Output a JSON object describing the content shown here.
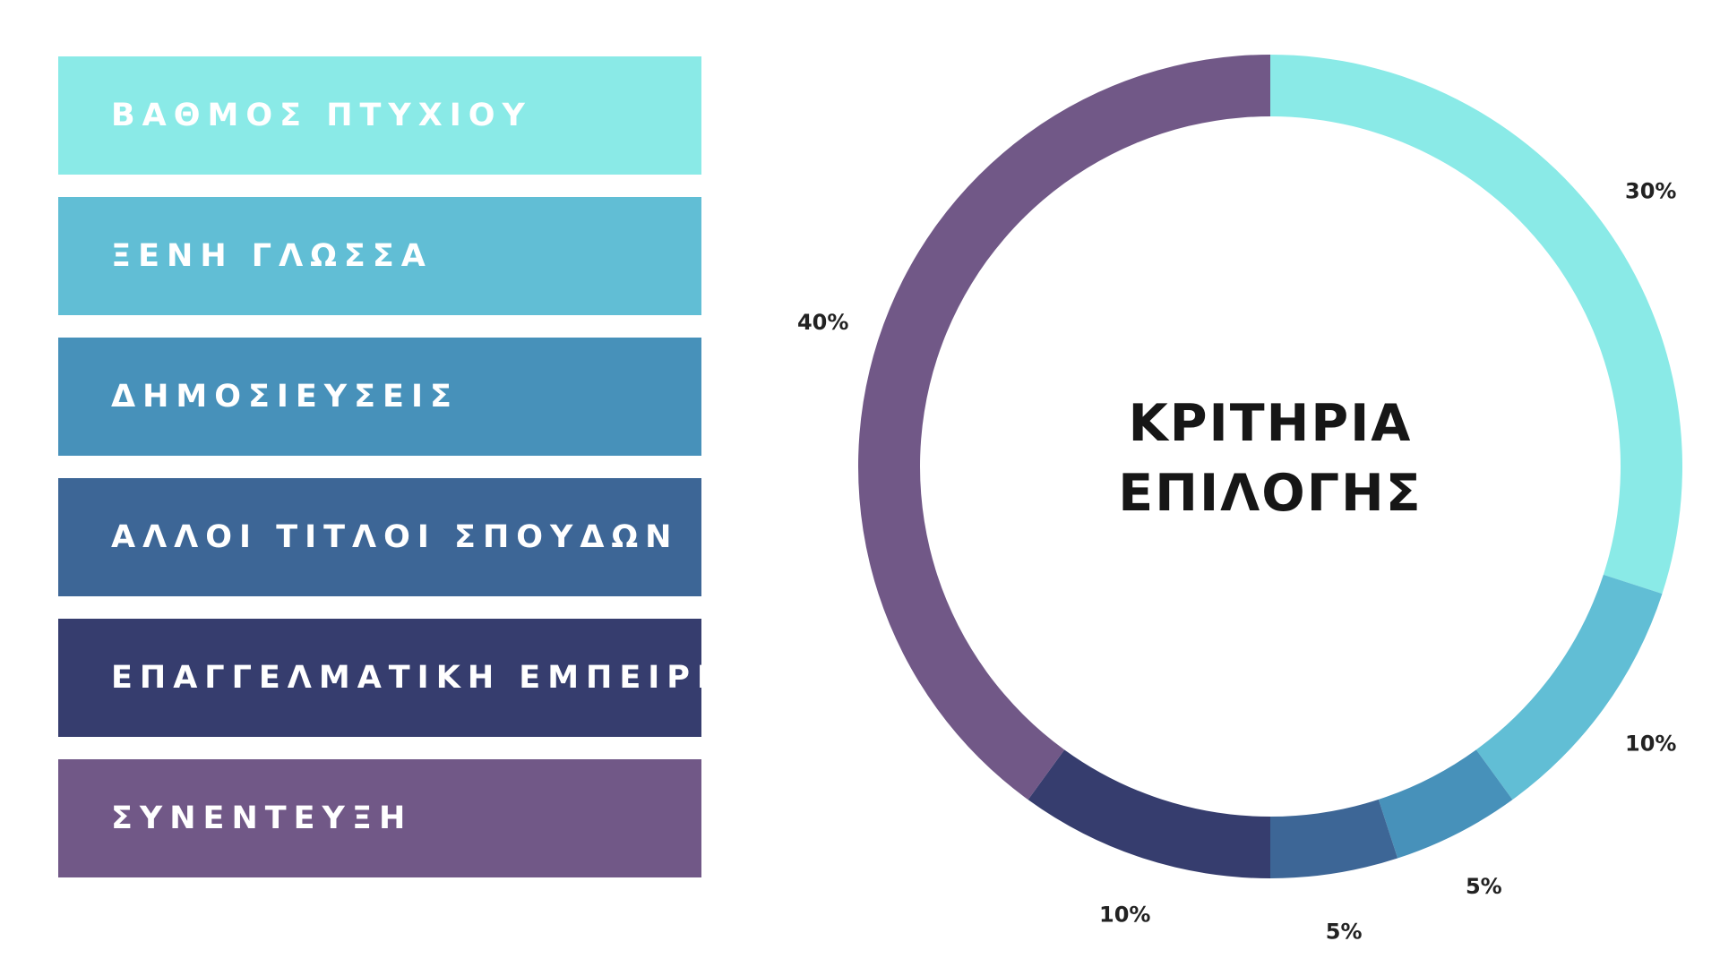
{
  "chart_data": {
    "type": "pie",
    "variant": "donut",
    "title_lines": [
      "ΚΡΙΤΗΡΙΑ",
      "ΕΠΙΛΟΓΗΣ"
    ],
    "categories": [
      "ΒΑΘΜΟΣ ΠΤΥΧΙΟΥ",
      "ΞΕΝΗ ΓΛΩΣΣΑ",
      "ΔΗΜΟΣΙΕΥΣΕΙΣ",
      "ΑΛΛΟΙ ΤΙΤΛΟΙ ΣΠΟΥΔΩΝ",
      "ΕΠΑΓΓΕΛΜΑΤΙΚΗ ΕΜΠΕΙΡΙΑ",
      "ΣΥΝΕΝΤΕΥΞΗ"
    ],
    "values": [
      30,
      10,
      5,
      5,
      10,
      40
    ],
    "value_labels": [
      "30%",
      "10%",
      "5%",
      "5%",
      "10%",
      "40%"
    ],
    "colors": [
      "#8aeae7",
      "#61bed5",
      "#4791ba",
      "#3d6696",
      "#363d6e",
      "#715887"
    ],
    "start": "12 o'clock",
    "direction": "clockwise",
    "legend_position": "left"
  }
}
